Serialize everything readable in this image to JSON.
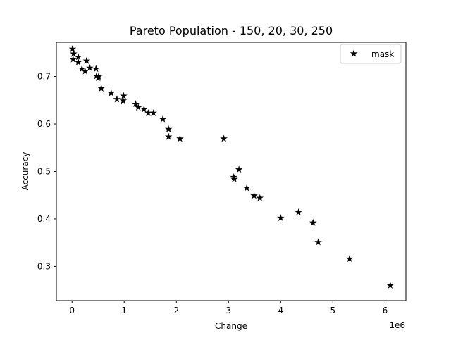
{
  "chart_data": {
    "type": "scatter",
    "title": "Pareto Population - 150, 20, 30, 250",
    "xlabel": "Change",
    "ylabel": "Accuracy",
    "x_offset_label": "1e6",
    "xlim": [
      -300000,
      6400000
    ],
    "ylim": [
      0.228,
      0.772
    ],
    "xticks": [
      0,
      1000000,
      2000000,
      3000000,
      4000000,
      5000000,
      6000000
    ],
    "xtick_labels": [
      "0",
      "1",
      "2",
      "3",
      "4",
      "5",
      "6"
    ],
    "yticks": [
      0.3,
      0.4,
      0.5,
      0.6,
      0.7
    ],
    "ytick_labels": [
      "0.3",
      "0.4",
      "0.5",
      "0.6",
      "0.7"
    ],
    "grid": false,
    "legend_position": "top-right",
    "marker": "star",
    "color": "#000000",
    "series": [
      {
        "name": "mask",
        "points": [
          [
            10000,
            0.758
          ],
          [
            30000,
            0.748
          ],
          [
            20000,
            0.736
          ],
          [
            120000,
            0.741
          ],
          [
            120000,
            0.73
          ],
          [
            190000,
            0.716
          ],
          [
            250000,
            0.711
          ],
          [
            280000,
            0.733
          ],
          [
            340000,
            0.718
          ],
          [
            460000,
            0.716
          ],
          [
            470000,
            0.701
          ],
          [
            500000,
            0.697
          ],
          [
            510000,
            0.7
          ],
          [
            560000,
            0.675
          ],
          [
            750000,
            0.665
          ],
          [
            860000,
            0.652
          ],
          [
            980000,
            0.649
          ],
          [
            990000,
            0.659
          ],
          [
            1220000,
            0.642
          ],
          [
            1270000,
            0.635
          ],
          [
            1380000,
            0.631
          ],
          [
            1460000,
            0.623
          ],
          [
            1560000,
            0.623
          ],
          [
            1740000,
            0.61
          ],
          [
            1850000,
            0.589
          ],
          [
            1850000,
            0.573
          ],
          [
            2070000,
            0.569
          ],
          [
            2910000,
            0.569
          ],
          [
            3100000,
            0.488
          ],
          [
            3110000,
            0.484
          ],
          [
            3200000,
            0.504
          ],
          [
            3350000,
            0.465
          ],
          [
            3490000,
            0.449
          ],
          [
            3600000,
            0.444
          ],
          [
            4000000,
            0.402
          ],
          [
            4340000,
            0.414
          ],
          [
            4620000,
            0.392
          ],
          [
            4720000,
            0.351
          ],
          [
            5320000,
            0.316
          ],
          [
            6100000,
            0.26
          ]
        ]
      }
    ]
  }
}
